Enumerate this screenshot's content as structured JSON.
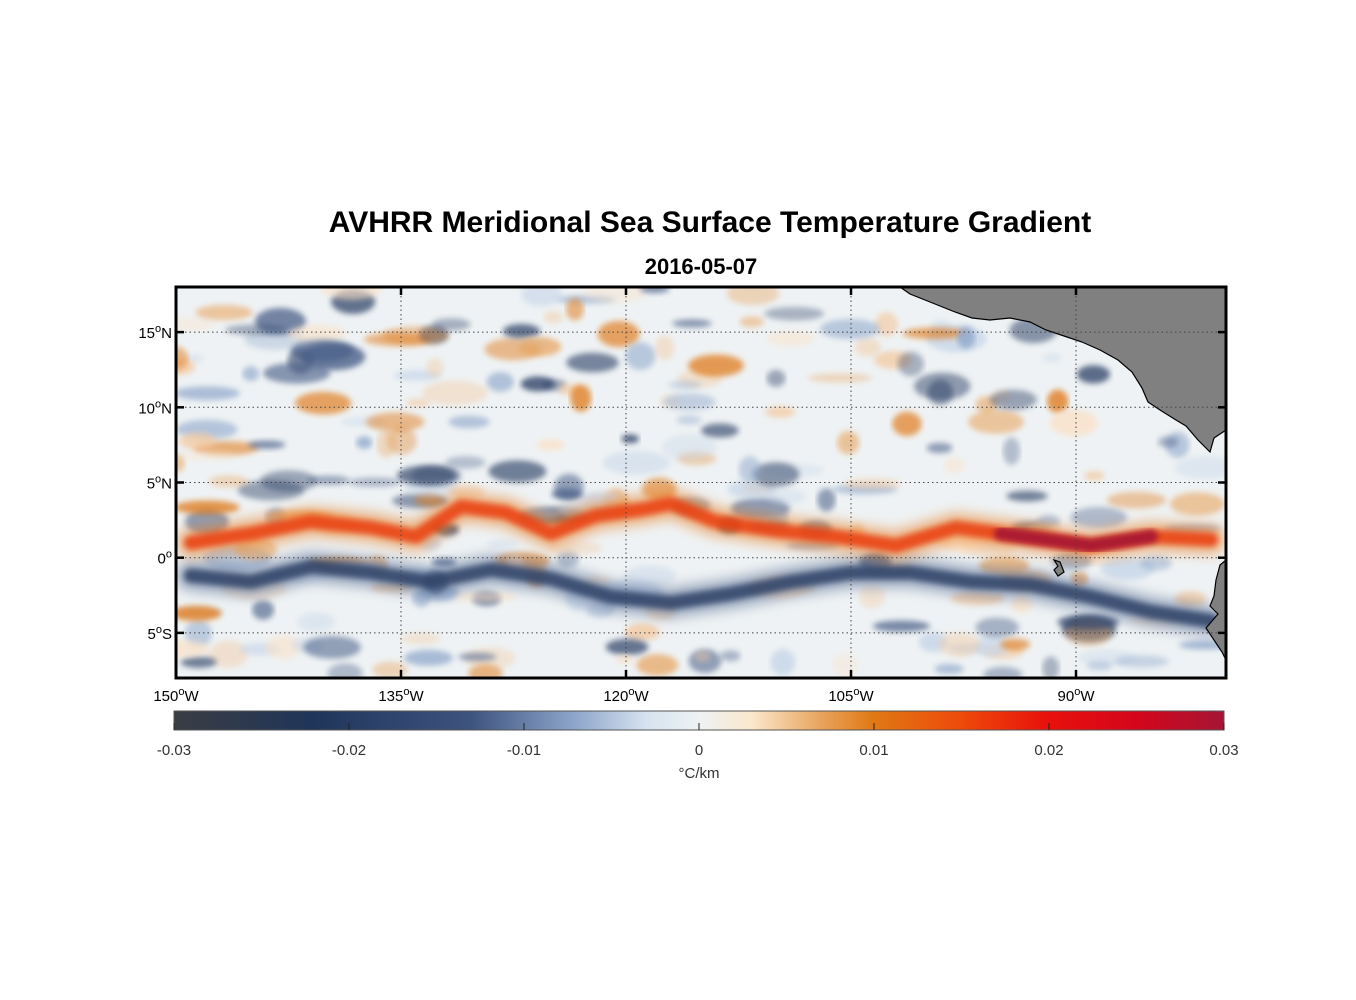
{
  "title": "AVHRR Meridional Sea Surface Temperature Gradient",
  "subtitle": "2016-05-07",
  "map": {
    "lon_range": [
      -150,
      -80
    ],
    "lat_range": [
      -8,
      18
    ],
    "lat_ticks": [
      {
        "value": 15,
        "deg": "15",
        "hem": "N"
      },
      {
        "value": 10,
        "deg": "10",
        "hem": "N"
      },
      {
        "value": 5,
        "deg": "5",
        "hem": "N"
      },
      {
        "value": 0,
        "deg": "0",
        "hem": ""
      },
      {
        "value": -5,
        "deg": "5",
        "hem": "S"
      }
    ],
    "lon_ticks": [
      {
        "value": -150,
        "deg": "150",
        "hem": "W"
      },
      {
        "value": -135,
        "deg": "135",
        "hem": "W"
      },
      {
        "value": -120,
        "deg": "120",
        "hem": "W"
      },
      {
        "value": -105,
        "deg": "105",
        "hem": "W"
      },
      {
        "value": -90,
        "deg": "90",
        "hem": "W"
      }
    ],
    "land_color": "#808080",
    "warm_band_lat": [
      [
        -149,
        1.0
      ],
      [
        -145,
        1.6
      ],
      [
        -141,
        2.4
      ],
      [
        -137,
        2.0
      ],
      [
        -134,
        1.4
      ],
      [
        -131,
        3.4
      ],
      [
        -128,
        3.0
      ],
      [
        -125,
        1.6
      ],
      [
        -122,
        2.8
      ],
      [
        -119,
        3.2
      ],
      [
        -117,
        3.6
      ],
      [
        -114,
        2.4
      ],
      [
        -110,
        1.8
      ],
      [
        -106,
        1.4
      ],
      [
        -102,
        0.8
      ],
      [
        -98,
        2.0
      ],
      [
        -95,
        1.6
      ],
      [
        -92,
        1.2
      ],
      [
        -89,
        0.8
      ],
      [
        -85,
        1.4
      ],
      [
        -81,
        1.2
      ]
    ],
    "cold_band_lat": [
      [
        -149,
        -1.2
      ],
      [
        -145,
        -1.6
      ],
      [
        -141,
        -0.6
      ],
      [
        -137,
        -1.0
      ],
      [
        -133,
        -1.6
      ],
      [
        -129,
        -0.8
      ],
      [
        -125,
        -1.4
      ],
      [
        -121,
        -2.6
      ],
      [
        -117,
        -3.0
      ],
      [
        -113,
        -2.4
      ],
      [
        -109,
        -1.6
      ],
      [
        -105,
        -1.0
      ],
      [
        -101,
        -1.0
      ],
      [
        -97,
        -1.6
      ],
      [
        -93,
        -1.8
      ],
      [
        -89,
        -2.6
      ],
      [
        -85,
        -3.6
      ],
      [
        -81,
        -4.2
      ]
    ]
  },
  "colorbar": {
    "min": -0.03,
    "max": 0.03,
    "ticks": [
      {
        "value": -0.03,
        "label": "-0.03"
      },
      {
        "value": -0.02,
        "label": "-0.02"
      },
      {
        "value": -0.01,
        "label": "-0.01"
      },
      {
        "value": 0,
        "label": "0"
      },
      {
        "value": 0.01,
        "label": "0.01"
      },
      {
        "value": 0.02,
        "label": "0.02"
      },
      {
        "value": 0.03,
        "label": "0.03"
      }
    ],
    "unit_label": "°C/km",
    "stops": [
      {
        "v": -0.03,
        "color": "#3a3d44"
      },
      {
        "v": -0.022,
        "color": "#1f3559"
      },
      {
        "v": -0.013,
        "color": "#3e5480"
      },
      {
        "v": -0.007,
        "color": "#8fa7cb"
      },
      {
        "v": -0.003,
        "color": "#d6e3f0"
      },
      {
        "v": 0,
        "color": "#eef2f4"
      },
      {
        "v": 0.003,
        "color": "#fbe7cc"
      },
      {
        "v": 0.007,
        "color": "#e8a35c"
      },
      {
        "v": 0.01,
        "color": "#e07814"
      },
      {
        "v": 0.015,
        "color": "#ee4a0a"
      },
      {
        "v": 0.02,
        "color": "#e8100c"
      },
      {
        "v": 0.025,
        "color": "#d4061c"
      },
      {
        "v": 0.03,
        "color": "#a51534"
      }
    ]
  }
}
